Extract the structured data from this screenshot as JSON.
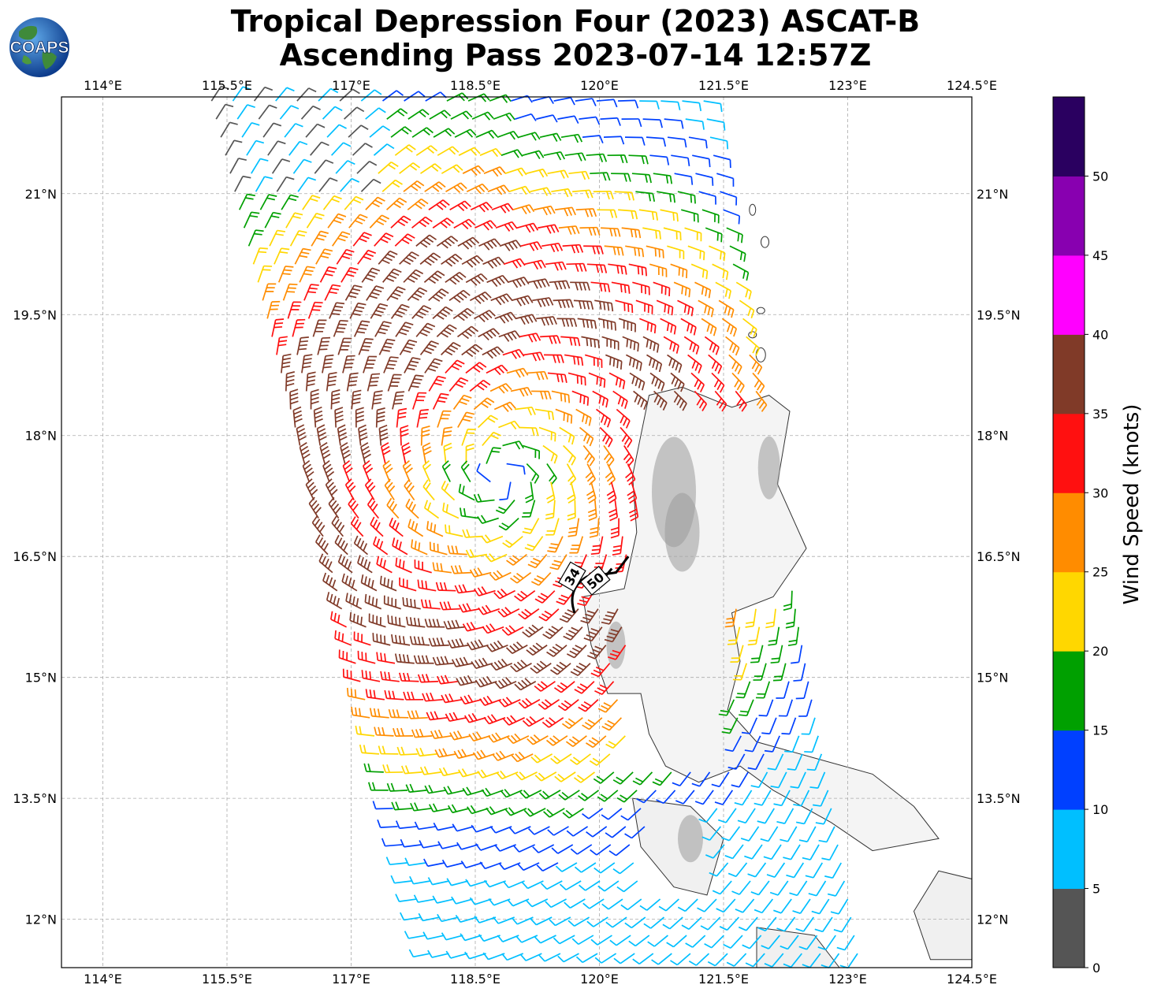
{
  "title": {
    "line1": "Tropical Depression Four (2023) ASCAT-B",
    "line2": "Ascending Pass 2023-07-14 12:57Z"
  },
  "logo": {
    "text": "COAPS",
    "icon": "globe-logo-icon"
  },
  "map": {
    "lon_range": [
      113.5,
      124.5
    ],
    "lat_range": [
      11.4,
      22.2
    ],
    "lon_ticks": [
      "114°E",
      "115.5°E",
      "117°E",
      "118.5°E",
      "120°E",
      "121.5°E",
      "123°E",
      "124.5°E"
    ],
    "lat_ticks": [
      "21°N",
      "19.5°N",
      "18°N",
      "16.5°N",
      "15°N",
      "13.5°N",
      "12°N"
    ],
    "grid": "dashed",
    "wind_radii_labels": [
      "34",
      "50"
    ],
    "storm_center": {
      "lon": 118.8,
      "lat": 17.5
    }
  },
  "colorbar": {
    "label": "Wind Speed (knots)",
    "tick_labels": [
      "0",
      "5",
      "10",
      "15",
      "20",
      "25",
      "30",
      "35",
      "40",
      "45",
      "50"
    ],
    "colors": [
      "#555555",
      "#00bfff",
      "#0040ff",
      "#00a000",
      "#ffd700",
      "#ff8c00",
      "#ff1010",
      "#803a28",
      "#ff00ff",
      "#8800b0",
      "#2a0060"
    ]
  }
}
